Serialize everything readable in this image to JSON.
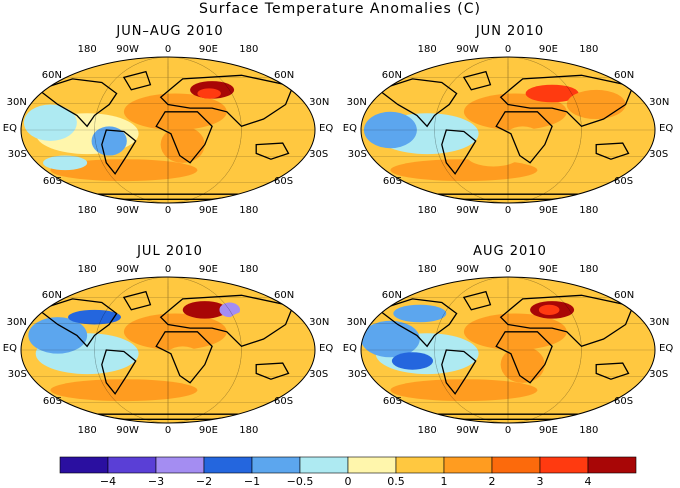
{
  "title": "Surface Temperature Anomalies (C)",
  "colors": {
    "levels": [
      "#2a0fa0",
      "#5a3fd6",
      "#a48df2",
      "#2466de",
      "#5ca6ee",
      "#aeeaf2",
      "#fff6ac",
      "#ffc840",
      "#ff9c20",
      "#fc6a0c",
      "#ff3a10",
      "#a80606"
    ],
    "coastline": "#000000"
  },
  "colorbar": {
    "labels": [
      "−4",
      "−3",
      "−2",
      "−1",
      "−0.5",
      "0",
      "0.5",
      "1",
      "2",
      "3",
      "4"
    ]
  },
  "axes": {
    "lon_labels": [
      "180",
      "90W",
      "0",
      "90E",
      "180"
    ],
    "lat_labels": [
      "60N",
      "30N",
      "EQ",
      "30S",
      "60S"
    ]
  },
  "panels": [
    {
      "title": "JUN–AUG 2010"
    },
    {
      "title": "JUN 2010"
    },
    {
      "title": "JUL 2010"
    },
    {
      "title": "AUG 2010"
    }
  ]
}
